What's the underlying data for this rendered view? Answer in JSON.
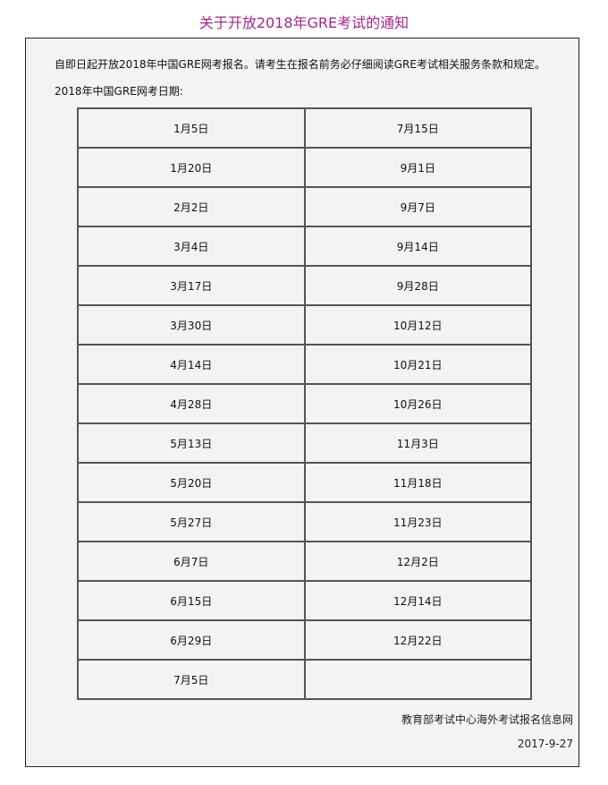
{
  "title": "关于开放2018年GRE考试的通知",
  "intro": "自即日起开放2018年中国GRE网考报名。请考生在报名前务必仔细阅读GRE考试相关服务条款和规定。",
  "dates_heading": "2018年中国GRE网考日期:",
  "dates": [
    [
      "1月5日",
      "7月15日"
    ],
    [
      "1月20日",
      "9月1日"
    ],
    [
      "2月2日",
      "9月7日"
    ],
    [
      "3月4日",
      "9月14日"
    ],
    [
      "3月17日",
      "9月28日"
    ],
    [
      "3月30日",
      "10月12日"
    ],
    [
      "4月14日",
      "10月21日"
    ],
    [
      "4月28日",
      "10月26日"
    ],
    [
      "5月13日",
      "11月3日"
    ],
    [
      "5月20日",
      "11月18日"
    ],
    [
      "5月27日",
      "11月23日"
    ],
    [
      "6月7日",
      "12月2日"
    ],
    [
      "6月15日",
      "12月14日"
    ],
    [
      "6月29日",
      "12月22日"
    ],
    [
      "7月5日",
      ""
    ]
  ],
  "organization": "教育部考试中心海外考试报名信息网",
  "publish_date": "2017-9-27",
  "title_color": "#a3288a"
}
